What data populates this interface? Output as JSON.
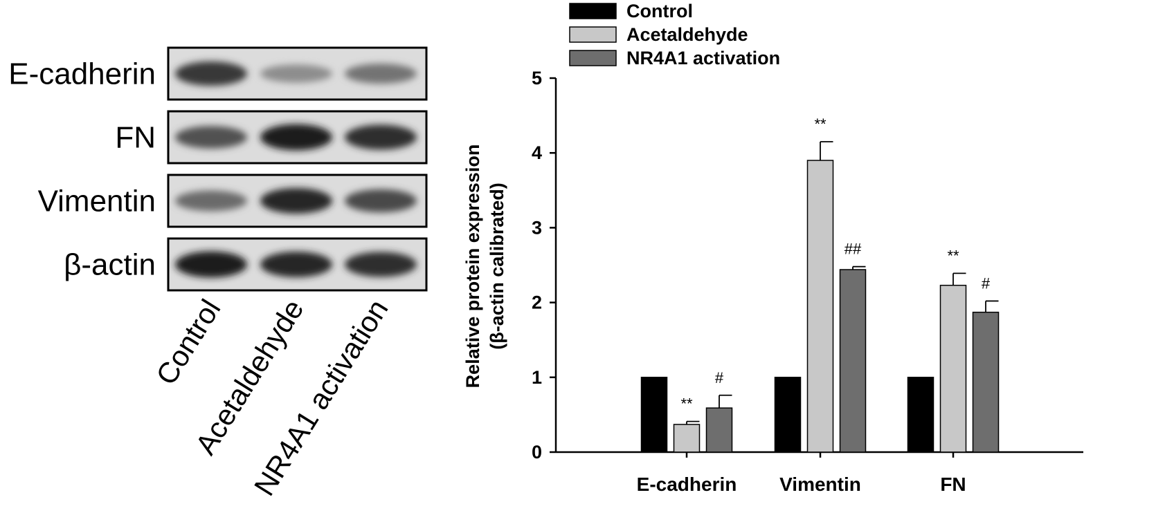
{
  "blot": {
    "rows": [
      "E-cadherin",
      "FN",
      "Vimentin",
      "β-actin"
    ],
    "lanes": [
      "Control",
      "Acetaldehyde",
      "NR4A1 activation"
    ],
    "band_intensity": [
      [
        0.85,
        0.35,
        0.5
      ],
      [
        0.7,
        1.0,
        0.9
      ],
      [
        0.55,
        0.95,
        0.75
      ],
      [
        1.0,
        0.95,
        0.9
      ]
    ]
  },
  "chart_data": {
    "type": "bar",
    "categories": [
      "E-cadherin",
      "Vimentin",
      "FN"
    ],
    "series": [
      {
        "name": "Control",
        "color": "#000000",
        "values": [
          1,
          1,
          1
        ],
        "errors": [
          0,
          0,
          0
        ],
        "sig": [
          "",
          "",
          ""
        ]
      },
      {
        "name": "Acetaldehyde",
        "color": "#c8c8c8",
        "values": [
          0.37,
          3.9,
          2.23
        ],
        "errors": [
          0.04,
          0.25,
          0.16
        ],
        "sig": [
          "**",
          "**",
          "**"
        ]
      },
      {
        "name": "NR4A1 activation",
        "color": "#6e6e6e",
        "values": [
          0.59,
          2.44,
          1.87
        ],
        "errors": [
          0.17,
          0.04,
          0.15
        ],
        "sig": [
          "#",
          "##",
          "#"
        ]
      }
    ],
    "ylabel_lines": [
      "Relative protein expression",
      "(β-actin  calibrated)"
    ],
    "ylim": [
      0,
      5
    ],
    "yticks": [
      0,
      1,
      2,
      3,
      4,
      5
    ],
    "grid": false,
    "legend_position": "top-left"
  }
}
